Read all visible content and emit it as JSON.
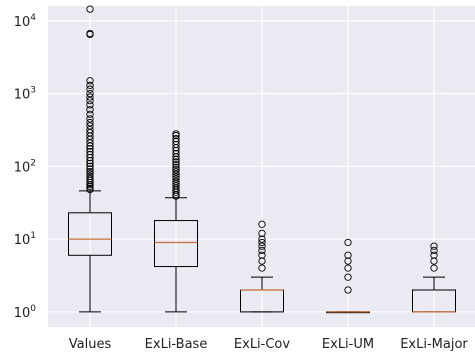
{
  "chart_data": {
    "type": "box",
    "title": "",
    "xlabel": "",
    "ylabel": "",
    "yscale": "log",
    "ylim": [
      0.62,
      16000
    ],
    "grid": true,
    "categories": [
      "Values",
      "ExLi-Base",
      "ExLi-Cov",
      "ExLi-UM",
      "ExLi-Major"
    ],
    "y_ticks": [
      {
        "base": "10",
        "exp": "0",
        "value": 1
      },
      {
        "base": "10",
        "exp": "1",
        "value": 10
      },
      {
        "base": "10",
        "exp": "2",
        "value": 100
      },
      {
        "base": "10",
        "exp": "3",
        "value": 1000
      },
      {
        "base": "10",
        "exp": "4",
        "value": 10000
      }
    ],
    "boxes": [
      {
        "name": "Values",
        "whisker_low": 1,
        "q1": 6,
        "median": 10,
        "q3": 23,
        "whisker_high": 46,
        "outliers": [
          48,
          50,
          53,
          56,
          60,
          64,
          68,
          73,
          79,
          85,
          92,
          100,
          110,
          120,
          132,
          145,
          160,
          175,
          190,
          210,
          235,
          260,
          290,
          320,
          360,
          400,
          450,
          520,
          600,
          700,
          800,
          900,
          1000,
          1150,
          1300,
          1500,
          6500,
          6700,
          14500
        ]
      },
      {
        "name": "ExLi-Base",
        "whisker_low": 1,
        "q1": 4.2,
        "median": 9,
        "q3": 18,
        "whisker_high": 37,
        "outliers": [
          39,
          41,
          44,
          47,
          50,
          54,
          58,
          62,
          67,
          72,
          78,
          84,
          90,
          97,
          105,
          115,
          125,
          135,
          150,
          165,
          180,
          200,
          220,
          240,
          265,
          280
        ]
      },
      {
        "name": "ExLi-Cov",
        "whisker_low": 1,
        "q1": 1,
        "median": 2,
        "q3": 2,
        "whisker_high": 3,
        "outliers": [
          4,
          5,
          6,
          7,
          8,
          9,
          10,
          12,
          16
        ]
      },
      {
        "name": "ExLi-UM",
        "whisker_low": 1,
        "q1": 1,
        "median": 1,
        "q3": 1,
        "whisker_high": 1,
        "outliers": [
          2,
          3,
          4,
          5,
          6,
          9
        ]
      },
      {
        "name": "ExLi-Major",
        "whisker_low": 1,
        "q1": 1,
        "median": 1,
        "q3": 2,
        "whisker_high": 3,
        "outliers": [
          4,
          5,
          6,
          7,
          8
        ]
      }
    ]
  },
  "colors": {
    "plot_bg": "#eaeaf2",
    "grid": "#ffffff",
    "box": "#000000",
    "median": "#c8703a",
    "text": "#222222"
  }
}
